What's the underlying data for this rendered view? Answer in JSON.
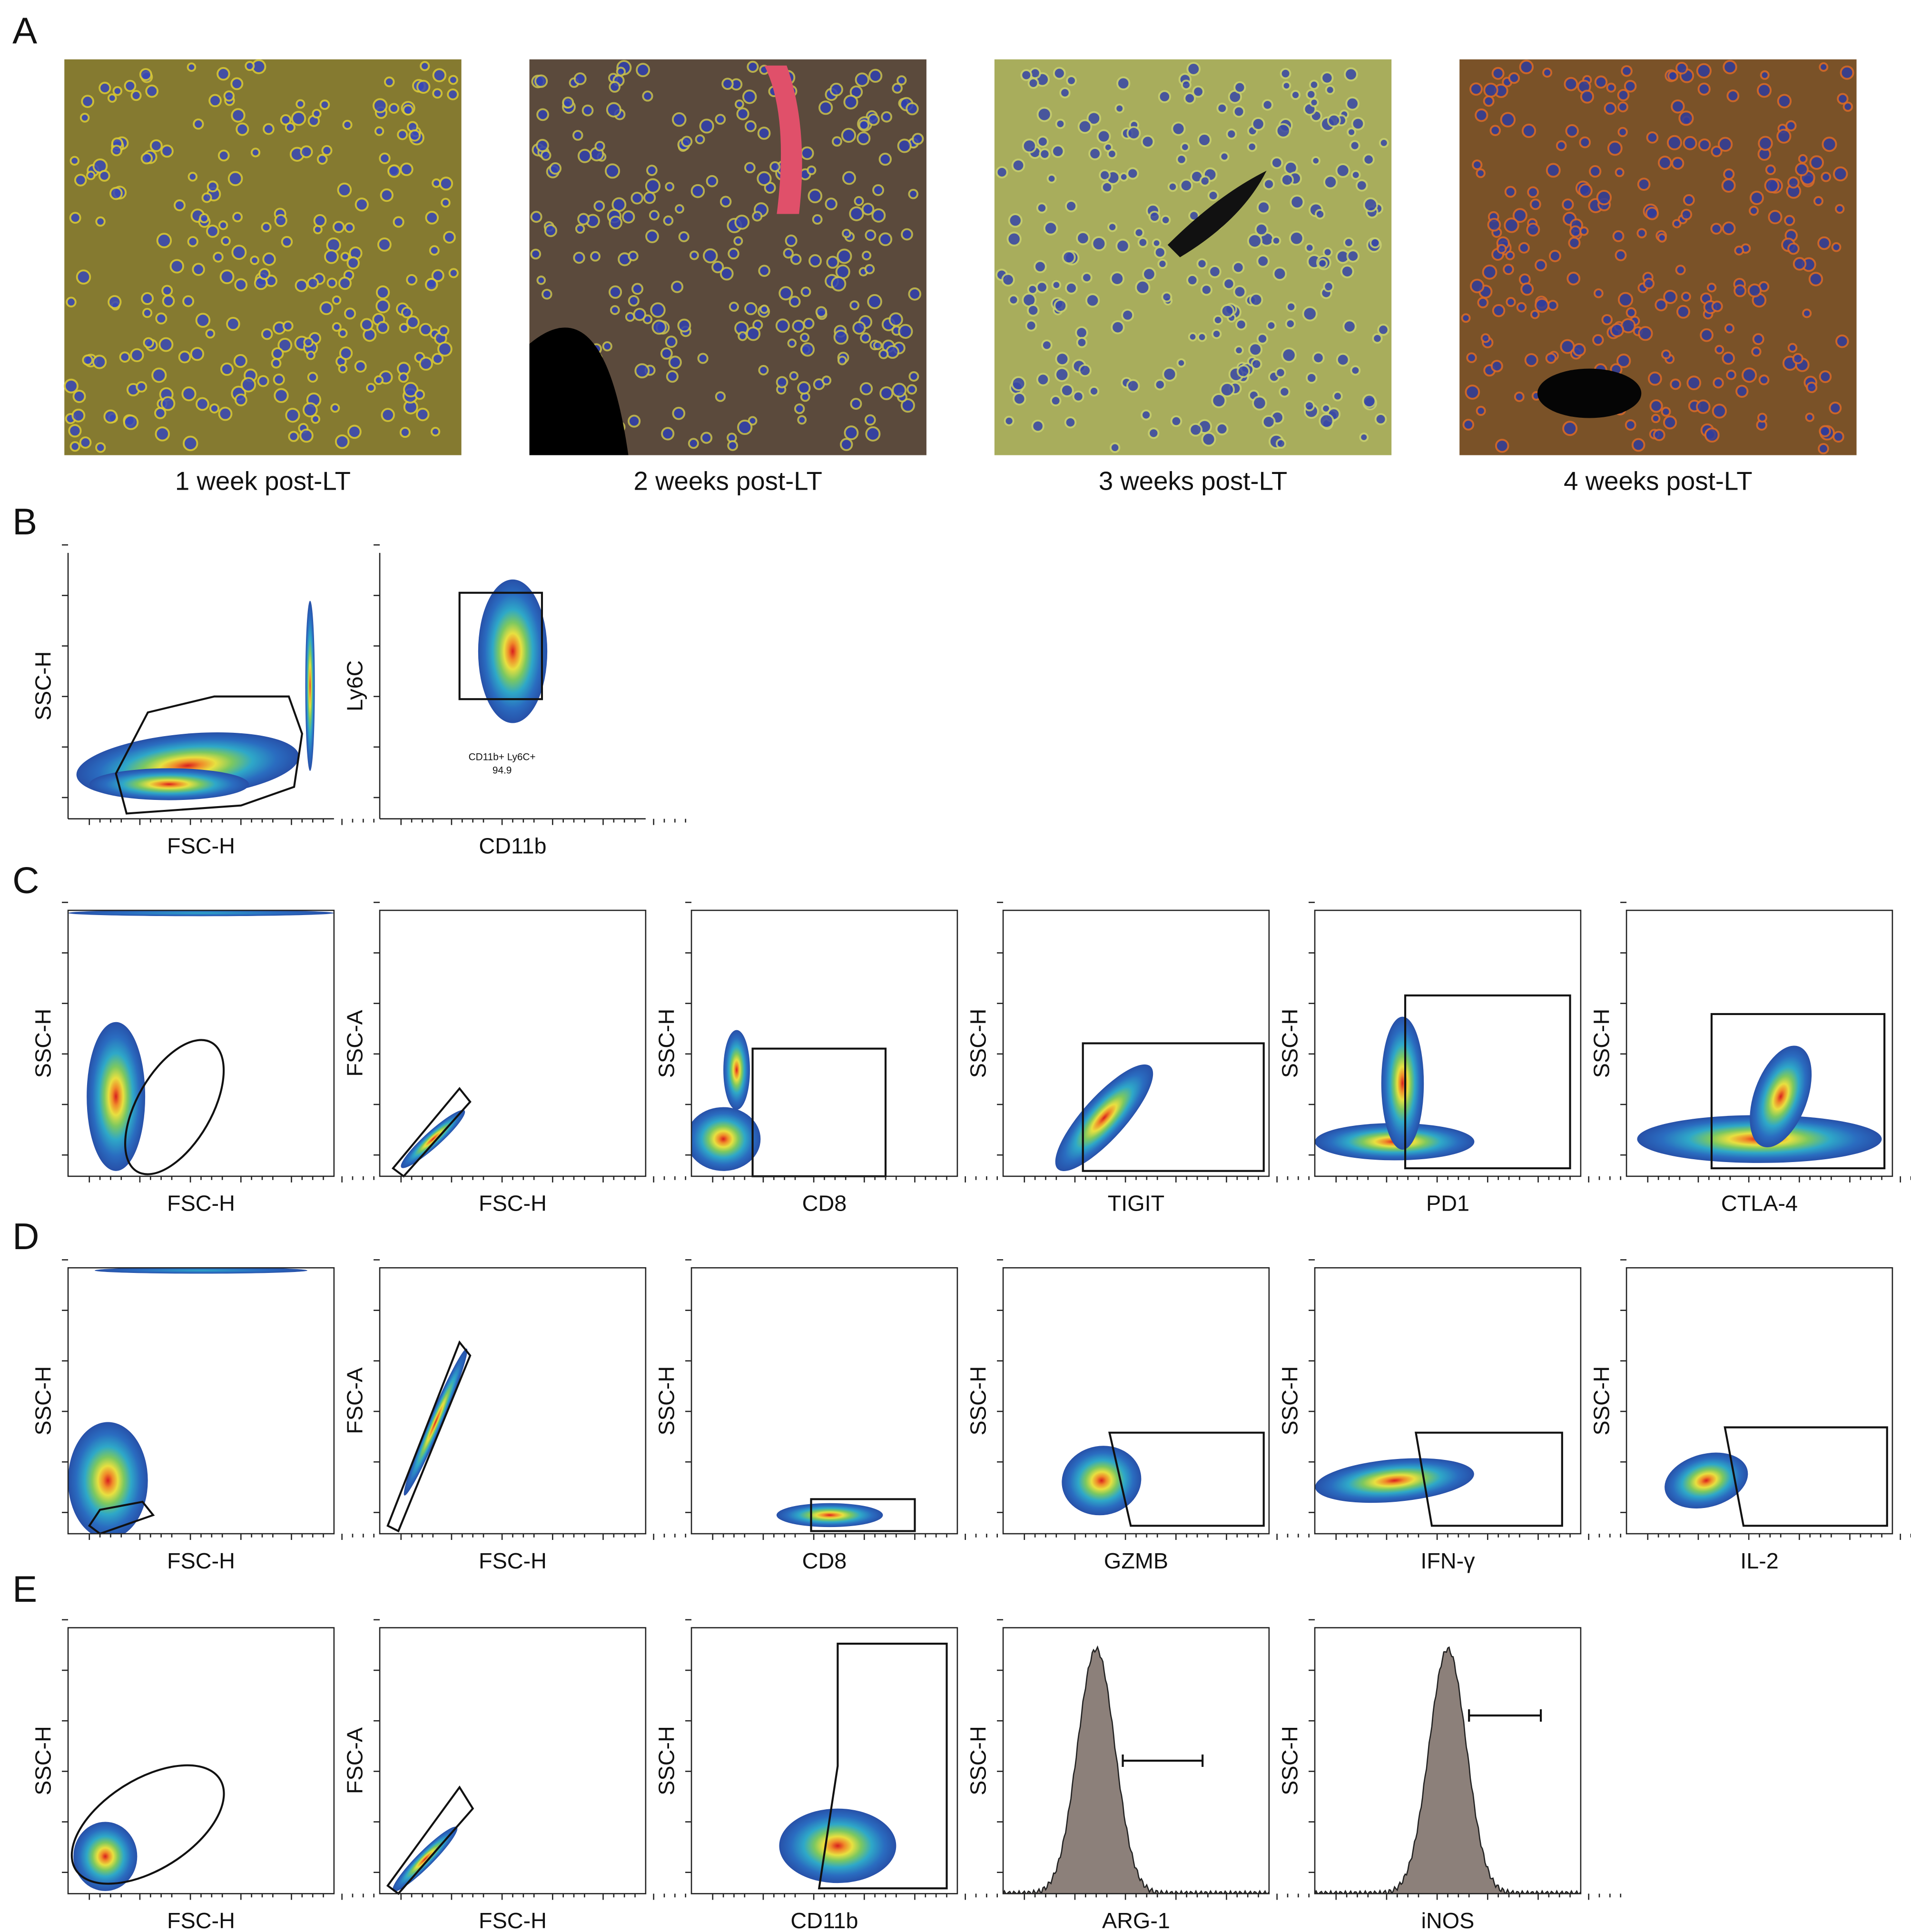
{
  "panel_a": {
    "label": "A",
    "captions": [
      "1 week post-LT",
      "2 weeks post-LT",
      "3 weeks post-LT",
      "4 weeks post-LT"
    ]
  },
  "panel_b": {
    "label": "B",
    "plots": [
      {
        "x_label": "FSC-H",
        "y_label": "SSC-H"
      },
      {
        "x_label": "CD11b",
        "y_label": "Ly6C",
        "gate_name": "CD11b+ Ly6C+",
        "gate_value": 94.9
      }
    ]
  },
  "panel_c": {
    "label": "C",
    "plots": [
      {
        "x_label": "FSC-H",
        "y_label": "SSC-H"
      },
      {
        "x_label": "FSC-H",
        "y_label": "FSC-A"
      },
      {
        "x_label": "CD8",
        "y_label": "SSC-H"
      },
      {
        "x_label": "TIGIT",
        "y_label": "SSC-H"
      },
      {
        "x_label": "PD1",
        "y_label": "SSC-H"
      },
      {
        "x_label": "CTLA-4",
        "y_label": "SSC-H"
      }
    ]
  },
  "panel_d": {
    "label": "D",
    "plots": [
      {
        "x_label": "FSC-H",
        "y_label": "SSC-H"
      },
      {
        "x_label": "FSC-H",
        "y_label": "FSC-A"
      },
      {
        "x_label": "CD8",
        "y_label": "SSC-H"
      },
      {
        "x_label": "GZMB",
        "y_label": "SSC-H"
      },
      {
        "x_label": "IFN-γ",
        "y_label": "SSC-H"
      },
      {
        "x_label": "IL-2",
        "y_label": "SSC-H"
      }
    ]
  },
  "panel_e": {
    "label": "E",
    "plots": [
      {
        "x_label": "FSC-H",
        "y_label": "SSC-H"
      },
      {
        "x_label": "FSC-H",
        "y_label": "FSC-A"
      },
      {
        "x_label": "CD11b",
        "y_label": "SSC-H"
      },
      {
        "x_label": "ARG-1",
        "y_label": "SSC-H"
      },
      {
        "x_label": "iNOS",
        "y_label": "SSC-H"
      }
    ]
  }
}
